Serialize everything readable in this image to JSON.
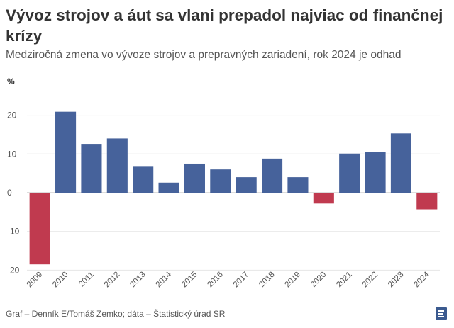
{
  "chart_data": {
    "type": "bar",
    "title": "Vývoz strojov a áut sa vlani prepadol najviac od finančnej krízy",
    "subtitle": "Medziročná zmena vo vývoze strojov a prepravných zariadení, rok 2024 je odhad",
    "ylabel": "%",
    "xlabel": "",
    "ylim": [
      -20,
      25
    ],
    "yticks": [
      -20,
      -10,
      0,
      10,
      20
    ],
    "grid": true,
    "categories": [
      "2009",
      "2010",
      "2011",
      "2012",
      "2013",
      "2014",
      "2015",
      "2016",
      "2017",
      "2018",
      "2019",
      "2020",
      "2021",
      "2022",
      "2023",
      "2024"
    ],
    "values": [
      -18.5,
      20.9,
      12.6,
      14.0,
      6.7,
      2.6,
      7.5,
      6.0,
      4.0,
      8.8,
      4.0,
      -2.8,
      10.1,
      10.5,
      15.3,
      -4.3
    ],
    "colors": {
      "positive": "#46629b",
      "negative": "#c03a4f",
      "grid": "#e6e6e6",
      "zero_line": "#bbbbbb"
    }
  },
  "footer": "Graf – Denník E/Tomáš Zemko; dáta – Štatistický úrad SR",
  "logo_icon": "denník-e-logo-icon"
}
